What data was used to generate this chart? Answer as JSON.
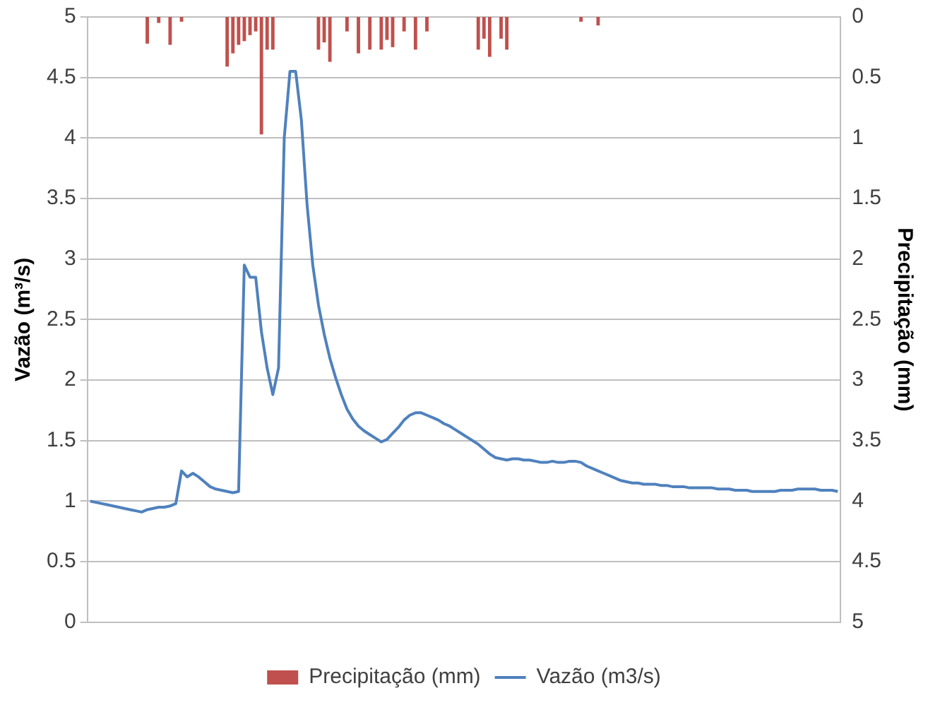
{
  "chart_data": {
    "type": "bar",
    "ylabel": "Vazão (m³/s)",
    "y2label": "Precipitação (mm)",
    "categories": [
      null,
      null,
      null,
      null,
      null,
      null,
      null,
      null,
      null,
      null,
      null,
      null,
      null,
      null,
      null,
      null,
      null,
      null,
      null,
      null,
      null,
      null,
      null,
      null,
      null,
      null,
      null,
      null,
      null,
      null,
      null,
      null,
      null,
      null,
      null,
      null,
      null,
      null,
      null,
      null,
      null,
      null,
      null,
      null,
      null,
      null,
      null,
      null,
      null,
      null,
      null,
      null,
      null,
      null,
      null,
      null,
      null,
      null,
      null,
      null,
      null,
      null,
      null,
      null,
      null,
      null,
      null,
      null,
      null,
      null,
      null,
      null,
      null,
      null,
      null,
      null,
      null,
      null,
      null,
      null,
      null,
      null,
      null,
      null,
      null,
      null,
      null,
      null,
      null,
      null,
      null,
      null,
      null,
      null,
      null,
      null,
      null,
      null,
      null,
      null,
      null,
      null,
      null,
      null,
      null,
      null,
      null,
      null,
      null,
      null,
      null,
      null,
      null,
      null,
      null,
      null,
      null,
      null,
      null,
      null,
      null,
      null,
      null,
      null,
      null,
      null,
      null,
      null,
      null,
      null,
      null,
      null
    ],
    "series": [
      {
        "name": "Precipitação (mm)",
        "axis": "y2",
        "color": "#c0504d",
        "values": [
          null,
          null,
          null,
          null,
          null,
          null,
          null,
          null,
          null,
          null,
          0.22,
          null,
          0.05,
          null,
          0.23,
          null,
          0.04,
          null,
          null,
          null,
          null,
          null,
          null,
          null,
          0.41,
          0.3,
          0.23,
          0.2,
          0.15,
          0.12,
          0.97,
          0.27,
          0.27,
          null,
          null,
          null,
          null,
          null,
          null,
          null,
          0.27,
          0.21,
          0.37,
          null,
          null,
          0.12,
          null,
          0.3,
          null,
          0.27,
          null,
          0.27,
          0.19,
          0.25,
          null,
          0.12,
          null,
          0.27,
          null,
          0.12,
          null,
          null,
          null,
          null,
          null,
          null,
          null,
          null,
          0.27,
          0.18,
          0.33,
          null,
          0.18,
          0.27,
          null,
          null,
          null,
          null,
          null,
          null,
          null,
          null,
          null,
          null,
          null,
          null,
          0.04,
          null,
          null,
          0.07,
          null,
          null,
          null,
          null,
          null,
          null,
          null,
          null,
          null,
          null,
          null,
          null,
          null,
          null,
          null,
          null,
          null,
          null,
          null,
          null,
          null,
          null,
          null,
          null,
          null,
          null,
          null,
          null,
          null,
          null,
          null,
          null,
          null,
          null,
          null,
          null,
          null,
          null,
          null,
          null,
          null,
          null
        ]
      },
      {
        "name": "Vazão (m3/s)",
        "type": "line",
        "color": "#4f81bd",
        "values": [
          1.0,
          0.99,
          0.98,
          0.97,
          0.96,
          0.95,
          0.94,
          0.93,
          0.92,
          0.91,
          0.93,
          0.94,
          0.95,
          0.95,
          0.96,
          0.98,
          1.25,
          1.2,
          1.23,
          1.2,
          1.16,
          1.12,
          1.1,
          1.09,
          1.08,
          1.07,
          1.08,
          2.95,
          2.85,
          2.85,
          2.4,
          2.1,
          1.88,
          2.1,
          4.0,
          4.55,
          4.55,
          4.15,
          3.45,
          2.95,
          2.62,
          2.38,
          2.18,
          2.02,
          1.88,
          1.76,
          1.68,
          1.62,
          1.58,
          1.55,
          1.52,
          1.49,
          1.51,
          1.56,
          1.61,
          1.67,
          1.71,
          1.73,
          1.73,
          1.71,
          1.69,
          1.67,
          1.64,
          1.62,
          1.59,
          1.56,
          1.53,
          1.5,
          1.47,
          1.43,
          1.39,
          1.36,
          1.35,
          1.34,
          1.35,
          1.35,
          1.34,
          1.34,
          1.33,
          1.32,
          1.32,
          1.33,
          1.32,
          1.32,
          1.33,
          1.33,
          1.32,
          1.29,
          1.27,
          1.25,
          1.23,
          1.21,
          1.19,
          1.17,
          1.16,
          1.15,
          1.15,
          1.14,
          1.14,
          1.14,
          1.13,
          1.13,
          1.12,
          1.12,
          1.12,
          1.11,
          1.11,
          1.11,
          1.11,
          1.11,
          1.1,
          1.1,
          1.1,
          1.09,
          1.09,
          1.09,
          1.08,
          1.08,
          1.08,
          1.08,
          1.08,
          1.09,
          1.09,
          1.09,
          1.1,
          1.1,
          1.1,
          1.1,
          1.09,
          1.09,
          1.09,
          1.08
        ]
      }
    ],
    "ylim": [
      0,
      5
    ],
    "yticks": [
      0,
      0.5,
      1,
      1.5,
      2,
      2.5,
      3,
      3.5,
      4,
      4.5,
      5
    ],
    "y2lim": [
      5,
      0
    ],
    "y2ticks": [
      0,
      0.5,
      1,
      1.5,
      2,
      2.5,
      3,
      3.5,
      4,
      4.5,
      5
    ],
    "grid": "y",
    "legend": "bottom",
    "marker": "none",
    "line_style": "solid"
  }
}
